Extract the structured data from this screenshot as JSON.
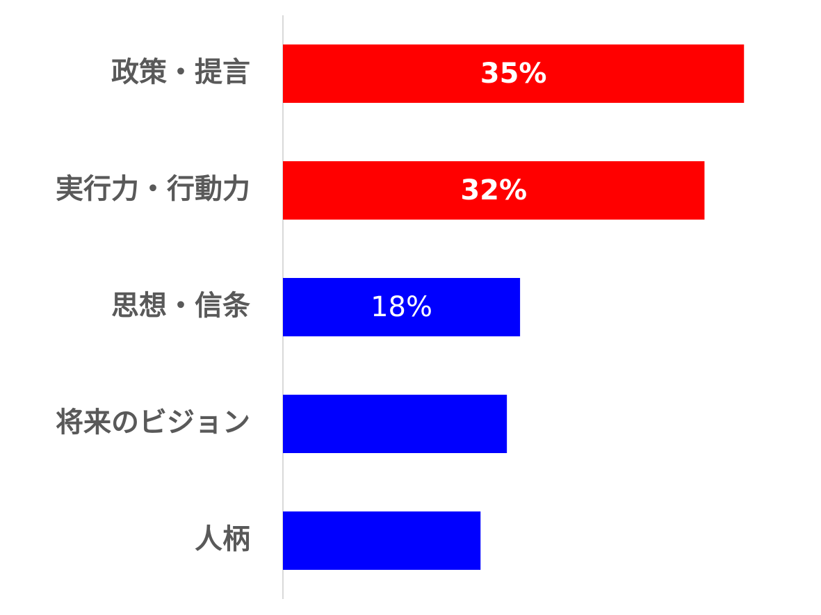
{
  "chart_data": {
    "type": "barh",
    "categories": [
      "政策・提言",
      "実行力・行動力",
      "思想・信条",
      "将来のビジョン",
      "人柄"
    ],
    "values": [
      35,
      32,
      18,
      17,
      15
    ],
    "value_labels": [
      "35%",
      "32%",
      "18%",
      null,
      null
    ],
    "colors": [
      "#ff0000",
      "#ff0000",
      "#0000ff",
      "#0000ff",
      "#0000ff"
    ],
    "xlim": [
      0,
      40
    ]
  }
}
